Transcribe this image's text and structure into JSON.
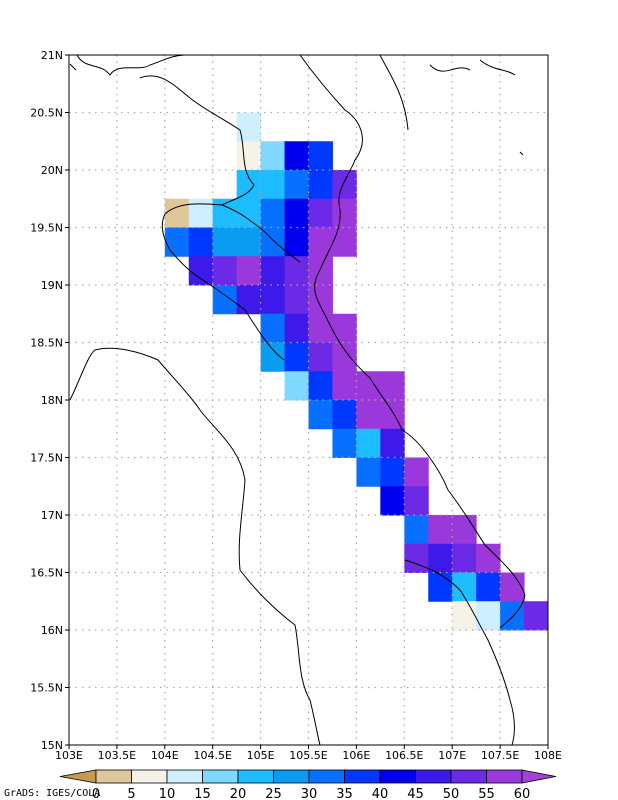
{
  "map": {
    "lon_labels": [
      "103E",
      "103.5E",
      "104E",
      "104.5E",
      "105E",
      "105.5E",
      "106E",
      "106.5E",
      "107E",
      "107.5E",
      "108E"
    ],
    "lat_labels": [
      "15N",
      "15.5N",
      "16N",
      "16.5N",
      "17N",
      "17.5N",
      "18N",
      "18.5N",
      "19N",
      "19.5N",
      "20N",
      "20.5N",
      "21N"
    ],
    "lon_range": [
      103,
      108
    ],
    "lat_range": [
      15,
      21
    ],
    "grid": true,
    "cell_size_deg": 0.25
  },
  "colorbar": {
    "labels": [
      "0",
      "5",
      "10",
      "15",
      "20",
      "25",
      "30",
      "35",
      "40",
      "45",
      "50",
      "55",
      "60"
    ],
    "colors": [
      "#c49a50",
      "#dfc79a",
      "#f7f2e8",
      "#cfefff",
      "#7fd8ff",
      "#1cbcff",
      "#0a9cf0",
      "#0870ff",
      "#0038ff",
      "#0000ee",
      "#3e1aea",
      "#6d2ae6",
      "#9a38dc",
      "#a042d8"
    ]
  },
  "credit": "GrADS: IGES/COLA",
  "cells": [
    {
      "lon": 104.875,
      "lat": 20.375,
      "c": 3
    },
    {
      "lon": 104.875,
      "lat": 20.125,
      "c": 2
    },
    {
      "lon": 105.125,
      "lat": 20.125,
      "c": 4
    },
    {
      "lon": 105.375,
      "lat": 20.125,
      "c": 9
    },
    {
      "lon": 105.625,
      "lat": 20.125,
      "c": 8
    },
    {
      "lon": 104.875,
      "lat": 19.875,
      "c": 5
    },
    {
      "lon": 105.125,
      "lat": 19.875,
      "c": 5
    },
    {
      "lon": 105.375,
      "lat": 19.875,
      "c": 7
    },
    {
      "lon": 105.625,
      "lat": 19.875,
      "c": 8
    },
    {
      "lon": 105.875,
      "lat": 19.875,
      "c": 11
    },
    {
      "lon": 104.125,
      "lat": 19.625,
      "c": 1
    },
    {
      "lon": 104.375,
      "lat": 19.625,
      "c": 3
    },
    {
      "lon": 104.625,
      "lat": 19.625,
      "c": 5
    },
    {
      "lon": 104.875,
      "lat": 19.625,
      "c": 5
    },
    {
      "lon": 105.125,
      "lat": 19.625,
      "c": 7
    },
    {
      "lon": 105.375,
      "lat": 19.625,
      "c": 9
    },
    {
      "lon": 105.625,
      "lat": 19.625,
      "c": 11
    },
    {
      "lon": 105.875,
      "lat": 19.625,
      "c": 12
    },
    {
      "lon": 104.125,
      "lat": 19.375,
      "c": 7
    },
    {
      "lon": 104.375,
      "lat": 19.375,
      "c": 8
    },
    {
      "lon": 104.625,
      "lat": 19.375,
      "c": 6
    },
    {
      "lon": 104.875,
      "lat": 19.375,
      "c": 6
    },
    {
      "lon": 105.125,
      "lat": 19.375,
      "c": 7
    },
    {
      "lon": 105.375,
      "lat": 19.375,
      "c": 9
    },
    {
      "lon": 105.625,
      "lat": 19.375,
      "c": 12
    },
    {
      "lon": 105.875,
      "lat": 19.375,
      "c": 12
    },
    {
      "lon": 104.375,
      "lat": 19.125,
      "c": 10
    },
    {
      "lon": 104.625,
      "lat": 19.125,
      "c": 11
    },
    {
      "lon": 104.875,
      "lat": 19.125,
      "c": 12
    },
    {
      "lon": 105.125,
      "lat": 19.125,
      "c": 10
    },
    {
      "lon": 105.375,
      "lat": 19.125,
      "c": 11
    },
    {
      "lon": 105.625,
      "lat": 19.125,
      "c": 12
    },
    {
      "lon": 104.625,
      "lat": 18.875,
      "c": 7
    },
    {
      "lon": 104.875,
      "lat": 18.875,
      "c": 10
    },
    {
      "lon": 105.125,
      "lat": 18.875,
      "c": 10
    },
    {
      "lon": 105.375,
      "lat": 18.875,
      "c": 11
    },
    {
      "lon": 105.625,
      "lat": 18.875,
      "c": 12
    },
    {
      "lon": 105.125,
      "lat": 18.625,
      "c": 7
    },
    {
      "lon": 105.375,
      "lat": 18.625,
      "c": 10
    },
    {
      "lon": 105.625,
      "lat": 18.625,
      "c": 12
    },
    {
      "lon": 105.875,
      "lat": 18.625,
      "c": 12
    },
    {
      "lon": 105.125,
      "lat": 18.375,
      "c": 6
    },
    {
      "lon": 105.375,
      "lat": 18.375,
      "c": 8
    },
    {
      "lon": 105.625,
      "lat": 18.375,
      "c": 11
    },
    {
      "lon": 105.875,
      "lat": 18.375,
      "c": 12
    },
    {
      "lon": 105.375,
      "lat": 18.125,
      "c": 4
    },
    {
      "lon": 105.625,
      "lat": 18.125,
      "c": 8
    },
    {
      "lon": 105.875,
      "lat": 18.125,
      "c": 12
    },
    {
      "lon": 106.125,
      "lat": 18.125,
      "c": 12
    },
    {
      "lon": 106.375,
      "lat": 18.125,
      "c": 12
    },
    {
      "lon": 105.625,
      "lat": 17.875,
      "c": 7
    },
    {
      "lon": 105.875,
      "lat": 17.875,
      "c": 8
    },
    {
      "lon": 106.125,
      "lat": 17.875,
      "c": 12
    },
    {
      "lon": 106.375,
      "lat": 17.875,
      "c": 12
    },
    {
      "lon": 105.875,
      "lat": 17.625,
      "c": 7
    },
    {
      "lon": 106.125,
      "lat": 17.625,
      "c": 5
    },
    {
      "lon": 106.375,
      "lat": 17.625,
      "c": 10
    },
    {
      "lon": 106.125,
      "lat": 17.375,
      "c": 7
    },
    {
      "lon": 106.375,
      "lat": 17.375,
      "c": 8
    },
    {
      "lon": 106.625,
      "lat": 17.375,
      "c": 12
    },
    {
      "lon": 106.375,
      "lat": 17.125,
      "c": 9
    },
    {
      "lon": 106.625,
      "lat": 17.125,
      "c": 11
    },
    {
      "lon": 106.625,
      "lat": 16.875,
      "c": 7
    },
    {
      "lon": 106.875,
      "lat": 16.875,
      "c": 12
    },
    {
      "lon": 107.125,
      "lat": 16.875,
      "c": 12
    },
    {
      "lon": 106.625,
      "lat": 16.625,
      "c": 11
    },
    {
      "lon": 106.875,
      "lat": 16.625,
      "c": 10
    },
    {
      "lon": 107.125,
      "lat": 16.625,
      "c": 11
    },
    {
      "lon": 107.375,
      "lat": 16.625,
      "c": 12
    },
    {
      "lon": 106.875,
      "lat": 16.375,
      "c": 8
    },
    {
      "lon": 107.125,
      "lat": 16.375,
      "c": 5
    },
    {
      "lon": 107.375,
      "lat": 16.375,
      "c": 8
    },
    {
      "lon": 107.625,
      "lat": 16.375,
      "c": 12
    },
    {
      "lon": 107.125,
      "lat": 16.125,
      "c": 2
    },
    {
      "lon": 107.375,
      "lat": 16.125,
      "c": 3
    },
    {
      "lon": 107.625,
      "lat": 16.125,
      "c": 7
    },
    {
      "lon": 107.875,
      "lat": 16.125,
      "c": 11
    }
  ]
}
